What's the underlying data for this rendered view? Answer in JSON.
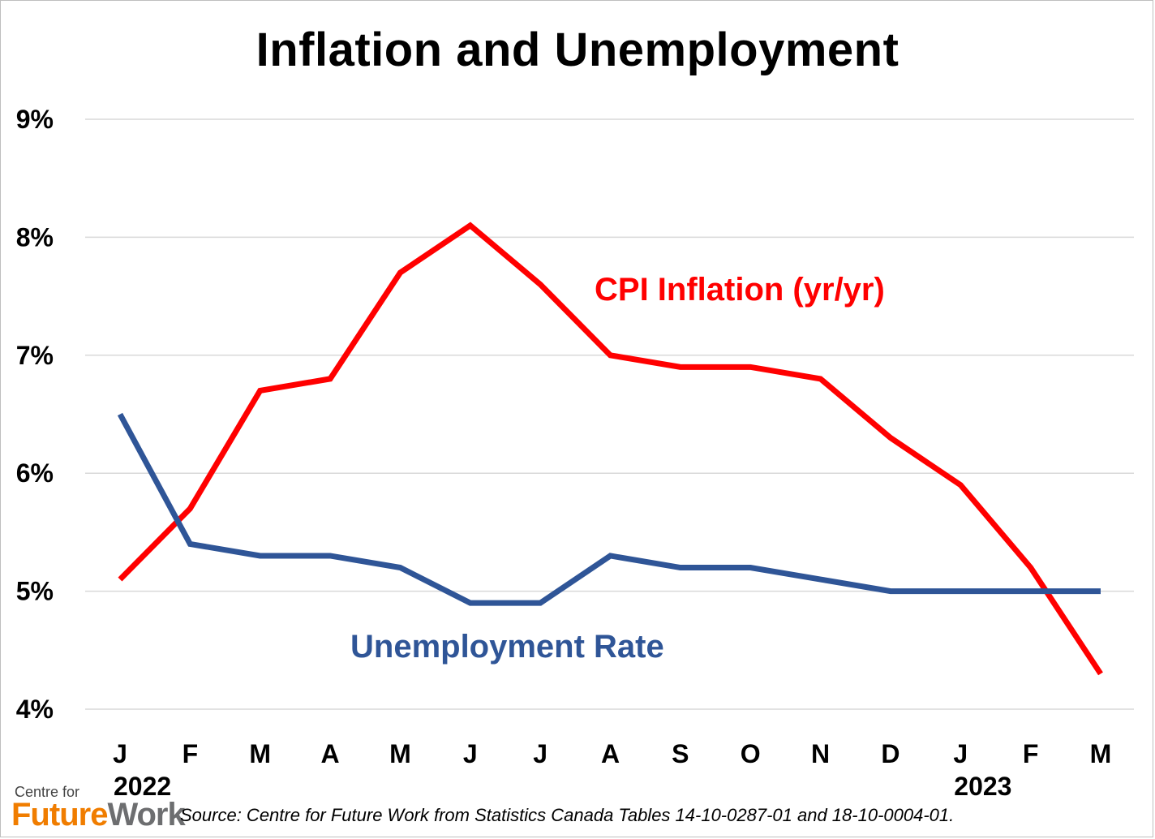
{
  "chart_data": {
    "type": "line",
    "title": "Inflation and Unemployment",
    "x": [
      "J",
      "F",
      "M",
      "A",
      "M",
      "J",
      "J",
      "A",
      "S",
      "O",
      "N",
      "D",
      "J",
      "F",
      "M"
    ],
    "year_labels": [
      {
        "index": 0,
        "label": "2022"
      },
      {
        "index": 12,
        "label": "2023"
      }
    ],
    "yticks": [
      "9%",
      "8%",
      "7%",
      "6%",
      "5%",
      "4%"
    ],
    "ylim": [
      4,
      9
    ],
    "grid": true,
    "series": [
      {
        "name": "CPI Inflation (yr/yr)",
        "color": "#ff0000",
        "values": [
          5.1,
          5.7,
          6.7,
          6.8,
          7.7,
          8.1,
          7.6,
          7.0,
          6.9,
          6.9,
          6.8,
          6.3,
          5.9,
          5.2,
          4.3
        ]
      },
      {
        "name": "Unemployment Rate",
        "color": "#2f5597",
        "values": [
          6.5,
          5.4,
          5.3,
          5.3,
          5.2,
          4.9,
          4.9,
          5.3,
          5.2,
          5.2,
          5.1,
          5.0,
          5.0,
          5.0,
          5.0
        ]
      }
    ]
  },
  "logo": {
    "top": "Centre for",
    "part1": "Future",
    "part2": "Work"
  },
  "source": "Source: Centre for Future Work from Statistics Canada Tables 14-10-0287-01 and 18-10-0004-01."
}
